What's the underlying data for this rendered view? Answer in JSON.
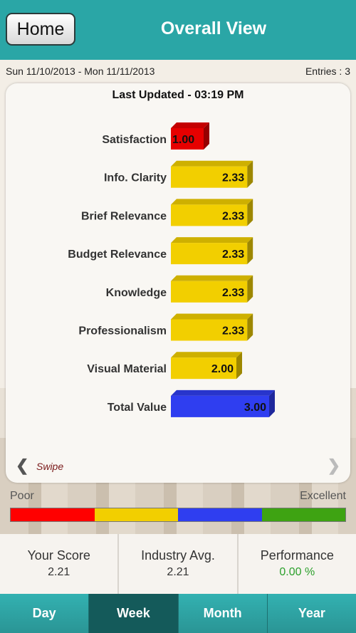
{
  "header": {
    "home_label": "Home",
    "title": "Overall View"
  },
  "subheader": {
    "date_range": "Sun 11/10/2013 - Mon 11/11/2013",
    "entries": "Entries : 3"
  },
  "card": {
    "last_updated": "Last Updated - 03:19 PM",
    "swipe_label": "Swipe"
  },
  "chart_data": {
    "type": "bar",
    "orientation": "horizontal",
    "categories": [
      "Satisfaction",
      "Info. Clarity",
      "Brief Relevance",
      "Budget Relevance",
      "Knowledge",
      "Professionalism",
      "Visual Material",
      "Total Value"
    ],
    "values": [
      1.0,
      2.33,
      2.33,
      2.33,
      2.33,
      2.33,
      2.0,
      3.0
    ],
    "value_labels": [
      "1.00",
      "2.33",
      "2.33",
      "2.33",
      "2.33",
      "2.33",
      "2.00",
      "3.00"
    ],
    "bar_colors": [
      "#e60000",
      "#f2cf00",
      "#f2cf00",
      "#f2cf00",
      "#f2cf00",
      "#f2cf00",
      "#f2cf00",
      "#2f3ef0"
    ],
    "xlim": [
      0,
      4
    ],
    "grid": false,
    "title": ""
  },
  "scale": {
    "poor_label": "Poor",
    "excellent_label": "Excellent",
    "colors": [
      "#ff0000",
      "#f2cf00",
      "#2f3ef0",
      "#3ea312"
    ]
  },
  "stats": [
    {
      "label": "Your Score",
      "value": "2.21"
    },
    {
      "label": "Industry Avg.",
      "value": "2.21"
    },
    {
      "label": "Performance",
      "value": "0.00 %"
    }
  ],
  "tabs": [
    {
      "label": "Day",
      "active": false
    },
    {
      "label": "Week",
      "active": true
    },
    {
      "label": "Month",
      "active": false
    },
    {
      "label": "Year",
      "active": false
    }
  ]
}
